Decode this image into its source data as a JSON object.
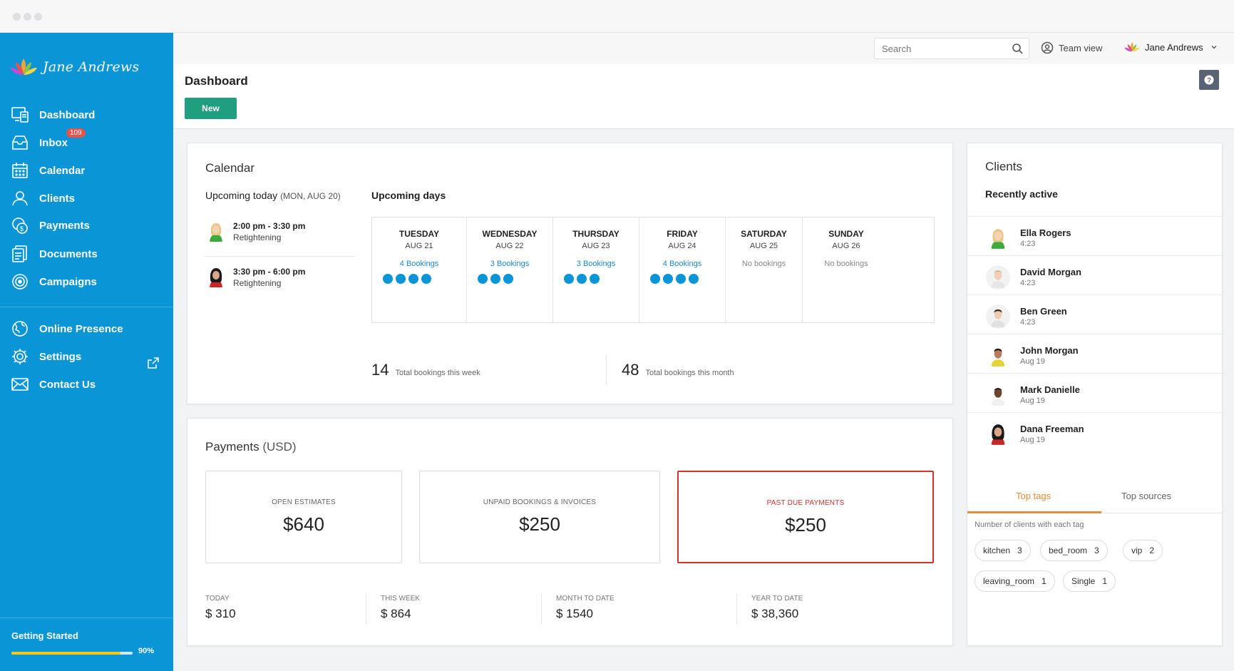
{
  "brand": {
    "name": "Jane Andrews"
  },
  "sidebar": {
    "items": [
      {
        "label": "Dashboard",
        "icon": "dashboard-icon"
      },
      {
        "label": "Inbox",
        "icon": "inbox-icon",
        "badge": "109"
      },
      {
        "label": "Calendar",
        "icon": "calendar-icon"
      },
      {
        "label": "Clients",
        "icon": "clients-icon"
      },
      {
        "label": "Payments",
        "icon": "payments-icon"
      },
      {
        "label": "Documents",
        "icon": "documents-icon"
      },
      {
        "label": "Campaigns",
        "icon": "campaigns-icon"
      },
      {
        "label": "Online Presence",
        "icon": "globe-icon"
      },
      {
        "label": "Settings",
        "icon": "gear-icon"
      },
      {
        "label": "Contact Us",
        "icon": "envelope-icon"
      }
    ],
    "getting_started": {
      "label": "Getting Started",
      "percent_label": "90%",
      "progress": 0.9
    }
  },
  "topbar": {
    "search_placeholder": "Search",
    "team_view": "Team view",
    "user_name": "Jane Andrews"
  },
  "header": {
    "title": "Dashboard",
    "new_button": "New"
  },
  "calendar": {
    "title": "Calendar",
    "upcoming_today": {
      "label": "Upcoming today",
      "date": "(MON,  AUG 20)"
    },
    "appointments": [
      {
        "time": "2:00 pm - 3:30 pm",
        "service": "Retightening"
      },
      {
        "time": "3:30 pm - 6:00 pm",
        "service": "Retightening"
      }
    ],
    "upcoming_days_label": "Upcoming days",
    "days": [
      {
        "name": "TUESDAY",
        "date": "AUG 21",
        "bookings": "4 Bookings",
        "count": 4
      },
      {
        "name": "WEDNESDAY",
        "date": "AUG 22",
        "bookings": "3 Bookings",
        "count": 3
      },
      {
        "name": "THURSDAY",
        "date": "AUG 23",
        "bookings": "3 Bookings",
        "count": 3
      },
      {
        "name": "FRIDAY",
        "date": "AUG 24",
        "bookings": "4 Bookings",
        "count": 4
      },
      {
        "name": "SATURDAY",
        "date": "AUG 25",
        "bookings": "No bookings",
        "count": 0
      },
      {
        "name": "SUNDAY",
        "date": "AUG 26",
        "bookings": "No bookings",
        "count": 0
      }
    ],
    "totals": [
      {
        "value": "14",
        "label": "Total bookings this week"
      },
      {
        "value": "48",
        "label": "Total bookings this month"
      }
    ]
  },
  "payments": {
    "title": "Payments",
    "unit": "(USD)",
    "boxes": [
      {
        "label": "OPEN ESTIMATES",
        "amount": "$640"
      },
      {
        "label": "UNPAID BOOKINGS & INVOICES",
        "amount": "$250"
      },
      {
        "label": "PAST DUE PAYMENTS",
        "amount": "$250"
      }
    ],
    "stats": [
      {
        "label": "TODAY",
        "value": "$ 310"
      },
      {
        "label": "THIS WEEK",
        "value": "$ 864"
      },
      {
        "label": "MONTH TO DATE",
        "value": "$ 1540"
      },
      {
        "label": "YEAR TO DATE",
        "value": "$ 38,360"
      }
    ]
  },
  "clients": {
    "title": "Clients",
    "recent_label": "Recently active",
    "list": [
      {
        "name": "Ella Rogers",
        "time": "4:23"
      },
      {
        "name": "David Morgan",
        "time": "4:23"
      },
      {
        "name": "Ben Green",
        "time": "4:23"
      },
      {
        "name": "John Morgan",
        "time": "Aug 19"
      },
      {
        "name": "Mark Danielle",
        "time": "Aug 19"
      },
      {
        "name": "Dana Freeman",
        "time": "Aug 19"
      }
    ],
    "tabs": {
      "top_tags": "Top tags",
      "top_sources": "Top sources"
    },
    "tags_caption": "Number of clients with each tag",
    "tags": [
      {
        "name": "kitchen",
        "count": "3"
      },
      {
        "name": "bed_room",
        "count": "3"
      },
      {
        "name": "vip",
        "count": "2"
      },
      {
        "name": "leaving_room",
        "count": "1"
      },
      {
        "name": "Single",
        "count": "1"
      }
    ]
  },
  "colors": {
    "sidebar": "#0a96d6",
    "accent_green": "#1f9f7f",
    "booking_dot": "#0a96d6",
    "past_due_red": "#d0342c",
    "tab_orange": "#e98a38",
    "progress_yellow": "#f5c518"
  }
}
